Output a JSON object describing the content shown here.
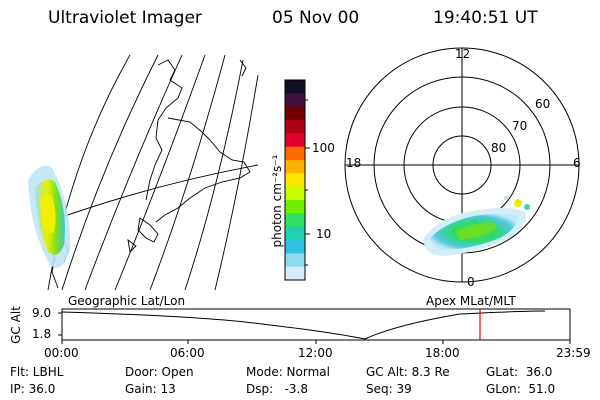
{
  "header": {
    "instrument": "Ultraviolet Imager",
    "date": "05 Nov 00",
    "time": "19:40:51 UT"
  },
  "left_panel": {
    "caption": "Geographic Lat/Lon"
  },
  "right_panel": {
    "caption": "Apex MLat/MLT",
    "ring_labels": [
      "60",
      "70",
      "80"
    ],
    "mlt_labels": {
      "top": "12",
      "left": "18",
      "right": "6",
      "bottom": "0"
    }
  },
  "colorbar": {
    "tick_labels": [
      "100",
      "10"
    ],
    "unit_label": "photon cm⁻²s⁻¹",
    "colors": [
      "#101020",
      "#401040",
      "#700000",
      "#b00018",
      "#e00030",
      "#ff6a00",
      "#ffb000",
      "#ffe600",
      "#c8ff00",
      "#70f000",
      "#30e060",
      "#20d0b0",
      "#30c0e0",
      "#90d8f0",
      "#d8ecf8"
    ]
  },
  "altitude_plot": {
    "ylabel": "GC Alt",
    "yticks": [
      "9.0",
      "1.8"
    ],
    "xticks": [
      "00:00",
      "06:00",
      "12:00",
      "18:00",
      "23:59"
    ],
    "current_marker_color": "#ff0000"
  },
  "status": {
    "row1": {
      "flt": "Flt: LBHL",
      "door": "Door: Open",
      "mode": "Mode: Normal",
      "gcalt": "GC Alt: 8.3 Re",
      "glat": "GLat:  36.0"
    },
    "row2": {
      "ip": "IP: 36.0",
      "gain": "Gain: 13",
      "dsp": "Dsp:   -3.8",
      "seq": "Seq: 39",
      "glon": "GLon:  51.0"
    }
  }
}
